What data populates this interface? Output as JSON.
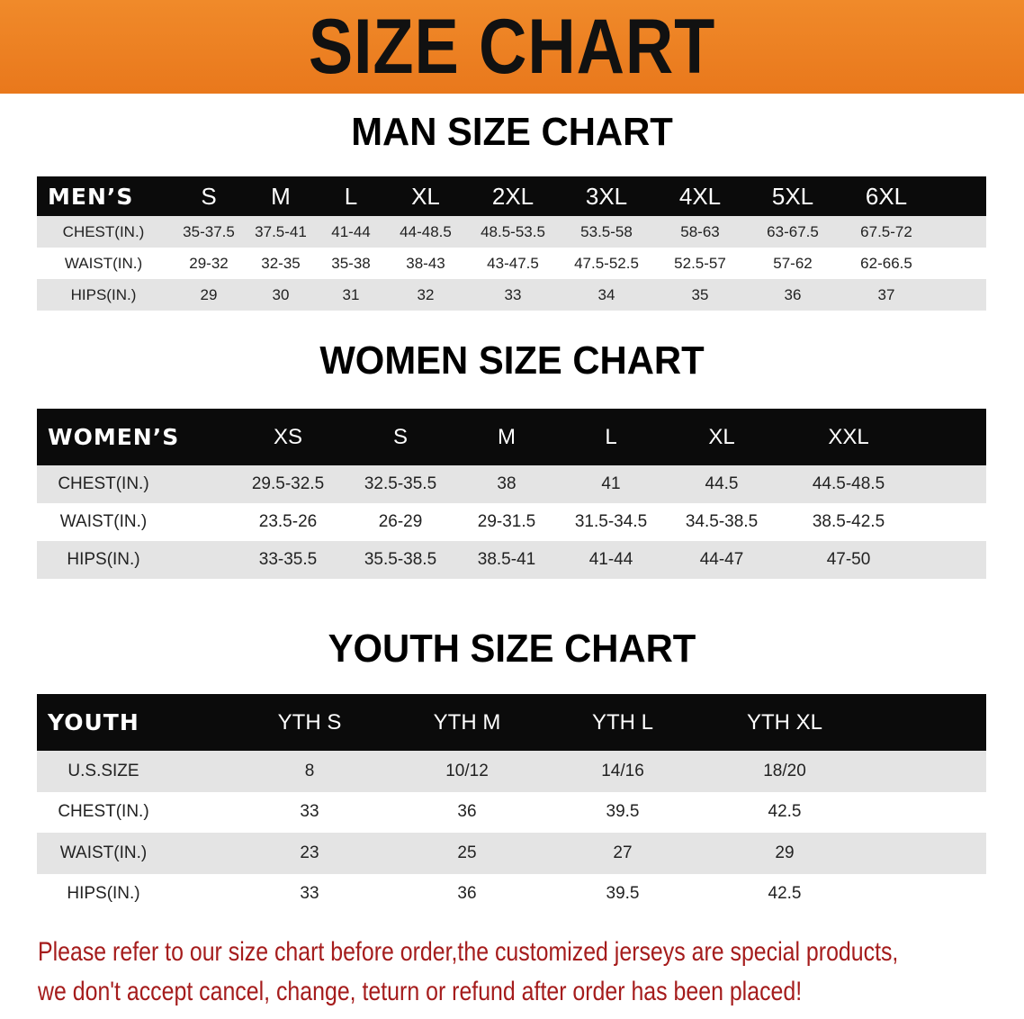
{
  "banner": {
    "title": "SIZE CHART",
    "color": "#ec7f22"
  },
  "men": {
    "title": "MAN SIZE CHART",
    "header": [
      "MEN’S",
      "S",
      "M",
      "L",
      "XL",
      "2XL",
      "3XL",
      "4XL",
      "5XL",
      "6XL"
    ],
    "rows": [
      [
        "CHEST(IN.)",
        "35-37.5",
        "37.5-41",
        "41-44",
        "44-48.5",
        "48.5-53.5",
        "53.5-58",
        "58-63",
        "63-67.5",
        "67.5-72"
      ],
      [
        "WAIST(IN.)",
        "29-32",
        "32-35",
        "35-38",
        "38-43",
        "43-47.5",
        "47.5-52.5",
        "52.5-57",
        "57-62",
        "62-66.5"
      ],
      [
        "HIPS(IN.)",
        "29",
        "30",
        "31",
        "32",
        "33",
        "34",
        "35",
        "36",
        "37"
      ]
    ]
  },
  "women": {
    "title": "WOMEN SIZE CHART",
    "header": [
      "WOMEN’S",
      "XS",
      "S",
      "M",
      "L",
      "XL",
      "XXL"
    ],
    "rows": [
      [
        "CHEST(IN.)",
        "29.5-32.5",
        "32.5-35.5",
        "38",
        "41",
        "44.5",
        "44.5-48.5"
      ],
      [
        "WAIST(IN.)",
        "23.5-26",
        "26-29",
        "29-31.5",
        "31.5-34.5",
        "34.5-38.5",
        "38.5-42.5"
      ],
      [
        "HIPS(IN.)",
        "33-35.5",
        "35.5-38.5",
        "38.5-41",
        "41-44",
        "44-47",
        "47-50"
      ]
    ]
  },
  "youth": {
    "title": "YOUTH SIZE CHART",
    "header": [
      "YOUTH",
      "YTH S",
      "YTH M",
      "YTH L",
      "YTH XL"
    ],
    "rows": [
      [
        "U.S.SIZE",
        "8",
        "10/12",
        "14/16",
        "18/20"
      ],
      [
        "CHEST(IN.)",
        "33",
        "36",
        "39.5",
        "42.5"
      ],
      [
        "WAIST(IN.)",
        "23",
        "25",
        "27",
        "29"
      ],
      [
        "HIPS(IN.)",
        "33",
        "36",
        "39.5",
        "42.5"
      ]
    ]
  },
  "note": {
    "line1": "Please refer to our size chart before order,the customized jerseys are special products,",
    "line2": "we don't accept cancel, change, teturn or refund after order has been placed!",
    "color": "#a51c1c"
  }
}
